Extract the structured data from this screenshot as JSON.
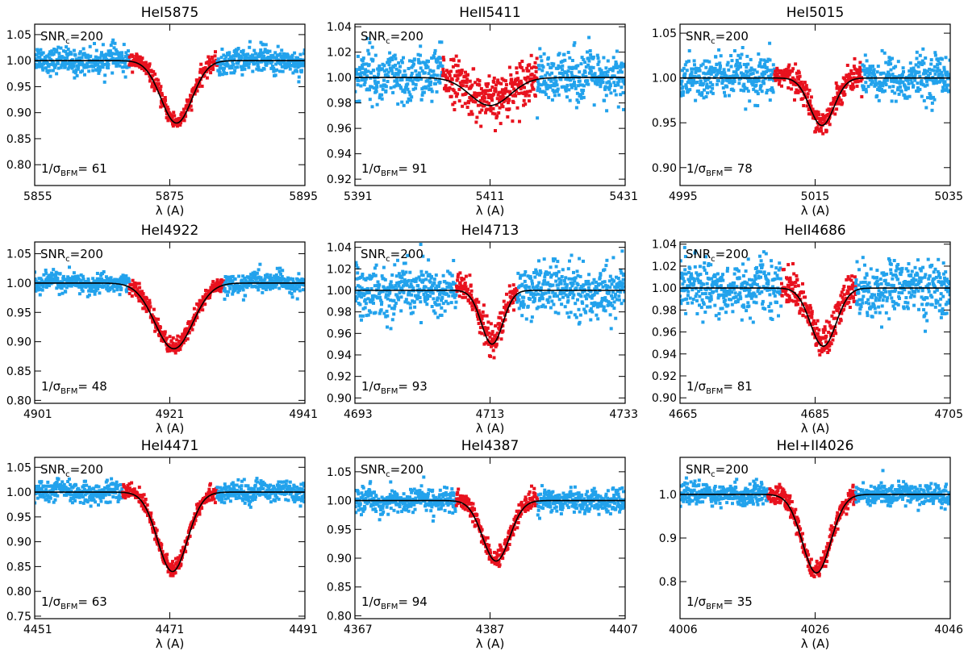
{
  "chart_data": [
    {
      "type": "line",
      "title": "HeI5875",
      "xlabel": "λ (A)",
      "xlim": [
        5855,
        5895
      ],
      "ylim": [
        0.76,
        1.07
      ],
      "xticks": [
        5855,
        5875,
        5895
      ],
      "xtick_labels": [
        "5855",
        "5875",
        "5895"
      ],
      "yticks": [
        0.8,
        0.85,
        0.9,
        0.95,
        1.0,
        1.05
      ],
      "ytick_labels": [
        "0.80",
        "0.85",
        "0.90",
        "0.95",
        "1.00",
        "1.05"
      ],
      "snr_label": "SNR",
      "snr_sub": "c",
      "snr_value": "=200",
      "sigma_prefix": "1/σ",
      "sigma_sub": "BFM",
      "sigma_value": "= 61",
      "series": [
        {
          "name": "model",
          "color": "#000000",
          "center": 5876,
          "depth": 0.12,
          "width": 2.3,
          "continuum": 1.0
        },
        {
          "name": "observed (fit region)",
          "color": "#e8121e",
          "range": [
            5869,
            5882
          ],
          "noise": 0.008
        },
        {
          "name": "observed",
          "color": "#22a2ec",
          "noise": 0.012
        }
      ]
    },
    {
      "type": "line",
      "title": "HeII5411",
      "xlabel": "λ (A)",
      "xlim": [
        5391,
        5431
      ],
      "ylim": [
        0.915,
        1.042
      ],
      "xticks": [
        5391,
        5411,
        5431
      ],
      "xtick_labels": [
        "5391",
        "5411",
        "5431"
      ],
      "yticks": [
        0.92,
        0.94,
        0.96,
        0.98,
        1.0,
        1.02,
        1.04
      ],
      "ytick_labels": [
        "0.92",
        "0.94",
        "0.96",
        "0.98",
        "1.00",
        "1.02",
        "1.04"
      ],
      "snr_label": "SNR",
      "snr_sub": "c",
      "snr_value": "=200",
      "sigma_prefix": "1/σ",
      "sigma_sub": "BFM",
      "sigma_value": "= 91",
      "series": [
        {
          "name": "model",
          "color": "#000000",
          "center": 5411,
          "depth": 0.022,
          "width": 3.0,
          "continuum": 1.0
        },
        {
          "name": "observed (fit region)",
          "color": "#e8121e",
          "range": [
            5404,
            5418
          ],
          "noise": 0.009
        },
        {
          "name": "observed",
          "color": "#22a2ec",
          "noise": 0.01
        }
      ]
    },
    {
      "type": "line",
      "title": "HeI5015",
      "xlabel": "λ (A)",
      "xlim": [
        4995,
        5035
      ],
      "ylim": [
        0.88,
        1.06
      ],
      "xticks": [
        4995,
        5015,
        5035
      ],
      "xtick_labels": [
        "4995",
        "5015",
        "5035"
      ],
      "yticks": [
        0.9,
        0.95,
        1.0,
        1.05
      ],
      "ytick_labels": [
        "0.90",
        "0.95",
        "1.00",
        "1.05"
      ],
      "snr_label": "SNR",
      "snr_sub": "c",
      "snr_value": "=200",
      "sigma_prefix": "1/σ",
      "sigma_sub": "BFM",
      "sigma_value": "= 78",
      "series": [
        {
          "name": "model",
          "color": "#000000",
          "center": 5016,
          "depth": 0.053,
          "width": 1.8,
          "continuum": 1.0
        },
        {
          "name": "observed (fit region)",
          "color": "#e8121e",
          "range": [
            5009,
            5022
          ],
          "noise": 0.007
        },
        {
          "name": "observed",
          "color": "#22a2ec",
          "noise": 0.012
        }
      ]
    },
    {
      "type": "line",
      "title": "HeI4922",
      "xlabel": "λ (A)",
      "xlim": [
        4901,
        4941
      ],
      "ylim": [
        0.795,
        1.07
      ],
      "xticks": [
        4901,
        4921,
        4941
      ],
      "xtick_labels": [
        "4901",
        "4921",
        "4941"
      ],
      "yticks": [
        0.8,
        0.85,
        0.9,
        0.95,
        1.0,
        1.05
      ],
      "ytick_labels": [
        "0.80",
        "0.85",
        "0.90",
        "0.95",
        "1.00",
        "1.05"
      ],
      "snr_label": "SNR",
      "snr_sub": "c",
      "snr_value": "=200",
      "sigma_prefix": "1/σ",
      "sigma_sub": "BFM",
      "sigma_value": "= 48",
      "series": [
        {
          "name": "model",
          "color": "#000000",
          "center": 4921.6,
          "depth": 0.112,
          "width": 2.8,
          "continuum": 1.0
        },
        {
          "name": "observed (fit region)",
          "color": "#e8121e",
          "range": [
            4915,
            4929
          ],
          "noise": 0.007
        },
        {
          "name": "observed",
          "color": "#22a2ec",
          "noise": 0.008
        }
      ]
    },
    {
      "type": "line",
      "title": "HeI4713",
      "xlabel": "λ (A)",
      "xlim": [
        4693,
        4733
      ],
      "ylim": [
        0.895,
        1.045
      ],
      "xticks": [
        4693,
        4713,
        4733
      ],
      "xtick_labels": [
        "4693",
        "4713",
        "4733"
      ],
      "yticks": [
        0.9,
        0.92,
        0.94,
        0.96,
        0.98,
        1.0,
        1.02,
        1.04
      ],
      "ytick_labels": [
        "0.90",
        "0.92",
        "0.94",
        "0.96",
        "0.98",
        "1.00",
        "1.02",
        "1.04"
      ],
      "snr_label": "SNR",
      "snr_sub": "c",
      "snr_value": "=200",
      "sigma_prefix": "1/σ",
      "sigma_sub": "BFM",
      "sigma_value": "= 93",
      "series": [
        {
          "name": "model",
          "color": "#000000",
          "center": 4713.3,
          "depth": 0.05,
          "width": 1.6,
          "continuum": 1.0
        },
        {
          "name": "observed (fit region)",
          "color": "#e8121e",
          "range": [
            4708,
            4717
          ],
          "noise": 0.007
        },
        {
          "name": "observed",
          "color": "#22a2ec",
          "noise": 0.012
        }
      ]
    },
    {
      "type": "line",
      "title": "HeII4686",
      "xlabel": "λ (A)",
      "xlim": [
        4665,
        4705
      ],
      "ylim": [
        0.895,
        1.042
      ],
      "xticks": [
        4665,
        4685,
        4705
      ],
      "xtick_labels": [
        "4665",
        "4685",
        "4705"
      ],
      "yticks": [
        0.9,
        0.92,
        0.94,
        0.96,
        0.98,
        1.0,
        1.02,
        1.04
      ],
      "ytick_labels": [
        "0.90",
        "0.92",
        "0.94",
        "0.96",
        "0.98",
        "1.00",
        "1.02",
        "1.04"
      ],
      "snr_label": "SNR",
      "snr_sub": "c",
      "snr_value": "=200",
      "sigma_prefix": "1/σ",
      "sigma_sub": "BFM",
      "sigma_value": "= 81",
      "series": [
        {
          "name": "model",
          "color": "#000000",
          "center": 4686.2,
          "depth": 0.053,
          "width": 1.9,
          "continuum": 1.0
        },
        {
          "name": "observed (fit region)",
          "color": "#e8121e",
          "range": [
            4680,
            4691
          ],
          "noise": 0.008
        },
        {
          "name": "observed",
          "color": "#22a2ec",
          "noise": 0.012
        }
      ]
    },
    {
      "type": "line",
      "title": "HeI4471",
      "xlabel": "λ (A)",
      "xlim": [
        4451,
        4491
      ],
      "ylim": [
        0.745,
        1.07
      ],
      "xticks": [
        4451,
        4471,
        4491
      ],
      "xtick_labels": [
        "4451",
        "4471",
        "4491"
      ],
      "yticks": [
        0.75,
        0.8,
        0.85,
        0.9,
        0.95,
        1.0,
        1.05
      ],
      "ytick_labels": [
        "0.75",
        "0.80",
        "0.85",
        "0.90",
        "0.95",
        "1.00",
        "1.05"
      ],
      "snr_label": "SNR",
      "snr_sub": "c",
      "snr_value": "=200",
      "sigma_prefix": "1/σ",
      "sigma_sub": "BFM",
      "sigma_value": "= 63",
      "series": [
        {
          "name": "model",
          "color": "#000000",
          "center": 4471.4,
          "depth": 0.16,
          "width": 2.2,
          "continuum": 1.0
        },
        {
          "name": "observed (fit region)",
          "color": "#e8121e",
          "range": [
            4464,
            4478
          ],
          "noise": 0.008
        },
        {
          "name": "observed",
          "color": "#22a2ec",
          "noise": 0.01
        }
      ]
    },
    {
      "type": "line",
      "title": "HeI4387",
      "xlabel": "λ (A)",
      "xlim": [
        4367,
        4407
      ],
      "ylim": [
        0.795,
        1.075
      ],
      "xticks": [
        4367,
        4387,
        4407
      ],
      "xtick_labels": [
        "4367",
        "4387",
        "4407"
      ],
      "yticks": [
        0.8,
        0.85,
        0.9,
        0.95,
        1.0,
        1.05
      ],
      "ytick_labels": [
        "0.80",
        "0.85",
        "0.90",
        "0.95",
        "1.00",
        "1.05"
      ],
      "snr_label": "SNR",
      "snr_sub": "c",
      "snr_value": "=200",
      "sigma_prefix": "1/σ",
      "sigma_sub": "BFM",
      "sigma_value": "= 94",
      "series": [
        {
          "name": "model",
          "color": "#000000",
          "center": 4387.9,
          "depth": 0.105,
          "width": 2.0,
          "continuum": 1.0
        },
        {
          "name": "observed (fit region)",
          "color": "#e8121e",
          "range": [
            4382,
            4394
          ],
          "noise": 0.008
        },
        {
          "name": "observed",
          "color": "#22a2ec",
          "noise": 0.01
        }
      ]
    },
    {
      "type": "line",
      "title": "HeI+II4026",
      "xlabel": "λ (A)",
      "xlim": [
        4006,
        4046
      ],
      "ylim": [
        0.715,
        1.085
      ],
      "xticks": [
        4006,
        4026,
        4046
      ],
      "xtick_labels": [
        "4006",
        "4026",
        "4046"
      ],
      "yticks": [
        0.8,
        0.9,
        1.0
      ],
      "ytick_labels": [
        "0.8",
        "0.9",
        "1.0"
      ],
      "snr_label": "SNR",
      "snr_sub": "c",
      "snr_value": "=200",
      "sigma_prefix": "1/σ",
      "sigma_sub": "BFM",
      "sigma_value": "= 35",
      "series": [
        {
          "name": "model",
          "color": "#000000",
          "center": 4026.2,
          "depth": 0.18,
          "width": 2.1,
          "continuum": 1.0
        },
        {
          "name": "observed (fit region)",
          "color": "#e8121e",
          "range": [
            4019,
            4032
          ],
          "noise": 0.01
        },
        {
          "name": "observed",
          "color": "#22a2ec",
          "noise": 0.012
        }
      ]
    }
  ]
}
